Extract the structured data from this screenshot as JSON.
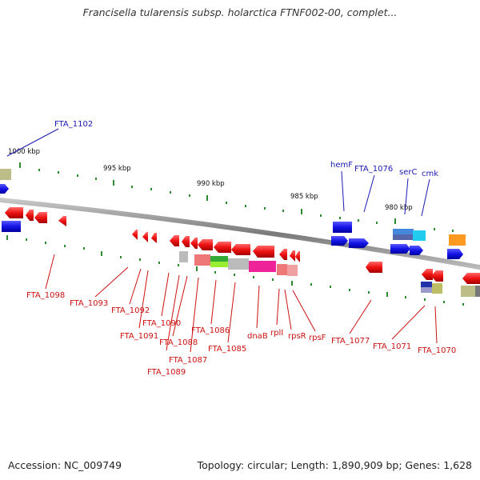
{
  "title": "Francisella tularensis subsp. holarctica FTNF002-00, complet...",
  "footer": {
    "accession": "Accession: NC_009749",
    "summary": "Topology: circular; Length: 1,890,909 bp; Genes: 1,628"
  },
  "colors": {
    "backbone": "#8a8a8a",
    "tick": "#2e8b2e",
    "plus_label": "#1a1ab0",
    "minus_label": "#cc1111",
    "gene_red": "#ee1111",
    "gene_blue": "#1414e6"
  },
  "scale_labels": [
    {
      "text": "1000 kbp",
      "kbp": 1000
    },
    {
      "text": "995 kbp",
      "kbp": 995
    },
    {
      "text": "990 kbp",
      "kbp": 990
    },
    {
      "text": "985 kbp",
      "kbp": 985
    },
    {
      "text": "980 kbp",
      "kbp": 980
    }
  ],
  "plus_strand_labels": [
    {
      "text": "FTA_1102"
    },
    {
      "text": "hemF"
    },
    {
      "text": "FTA_1076"
    },
    {
      "text": "serC"
    },
    {
      "text": "cmk"
    }
  ],
  "minus_strand_labels": [
    {
      "text": "FTA_1098"
    },
    {
      "text": "FTA_1093"
    },
    {
      "text": "FTA_1092"
    },
    {
      "text": "FTA_1091"
    },
    {
      "text": "FTA_1090"
    },
    {
      "text": "FTA_1088"
    },
    {
      "text": "FTA_1089"
    },
    {
      "text": "FTA_1087"
    },
    {
      "text": "FTA_1086"
    },
    {
      "text": "FTA_1085"
    },
    {
      "text": "dnaB"
    },
    {
      "text": "rplI"
    },
    {
      "text": "rpsR"
    },
    {
      "text": "rpsF"
    },
    {
      "text": "FTA_1077"
    },
    {
      "text": "FTA_1071"
    },
    {
      "text": "FTA_1070"
    }
  ]
}
